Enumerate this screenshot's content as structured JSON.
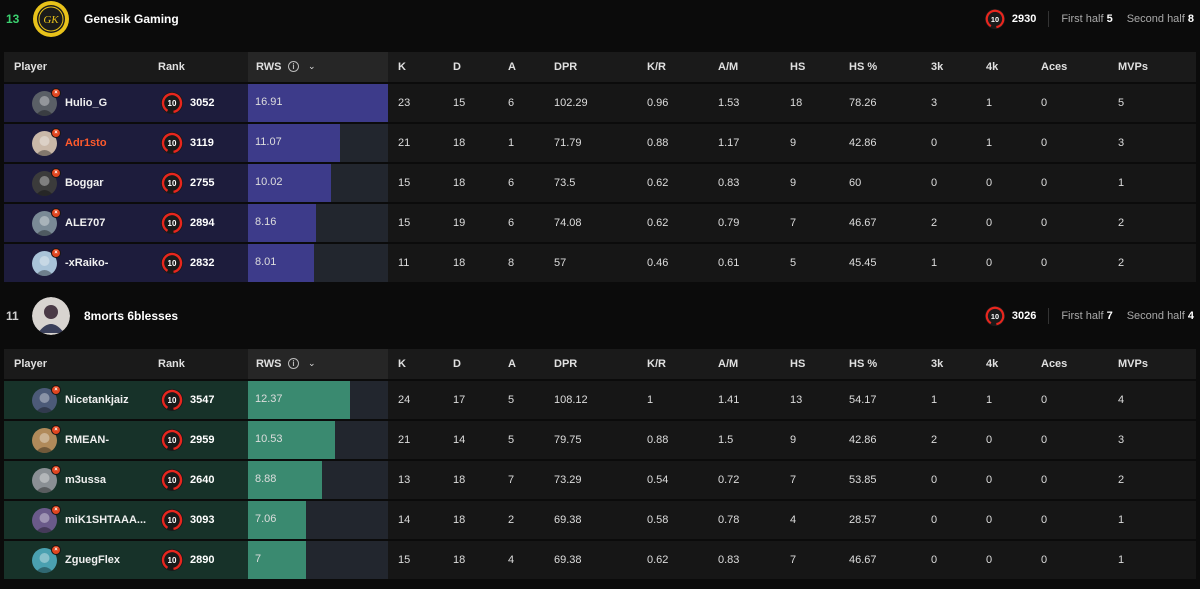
{
  "teams": [
    {
      "score": "13",
      "score_color": "#3bd16f",
      "name": "Genesik Gaming",
      "avg_elo": "2930",
      "first_half_label": "First half",
      "first_half": "5",
      "second_half_label": "Second half",
      "second_half": "8",
      "row_color": "#1d1c3c",
      "bar_color": "#3d3b8a",
      "rws_max": 16.91,
      "players": [
        {
          "nick": "Hulio_G",
          "nick_color": "#f0f0f0",
          "level": "10",
          "elo": "3052",
          "rws": "16.91",
          "k": "23",
          "d": "15",
          "a": "6",
          "dpr": "102.29",
          "kr": "0.96",
          "am": "1.53",
          "hs": "18",
          "hsp": "78.26",
          "k3": "3",
          "k4": "1",
          "aces": "0",
          "mvps": "5"
        },
        {
          "nick": "Adr1sto",
          "nick_color": "#ff5a2c",
          "level": "10",
          "elo": "3119",
          "rws": "11.07",
          "k": "21",
          "d": "18",
          "a": "1",
          "dpr": "71.79",
          "kr": "0.88",
          "am": "1.17",
          "hs": "9",
          "hsp": "42.86",
          "k3": "0",
          "k4": "1",
          "aces": "0",
          "mvps": "3"
        },
        {
          "nick": "Boggar",
          "nick_color": "#f0f0f0",
          "level": "10",
          "elo": "2755",
          "rws": "10.02",
          "k": "15",
          "d": "18",
          "a": "6",
          "dpr": "73.5",
          "kr": "0.62",
          "am": "0.83",
          "hs": "9",
          "hsp": "60",
          "k3": "0",
          "k4": "0",
          "aces": "0",
          "mvps": "1"
        },
        {
          "nick": "ALE707",
          "nick_color": "#f0f0f0",
          "level": "10",
          "elo": "2894",
          "rws": "8.16",
          "k": "15",
          "d": "19",
          "a": "6",
          "dpr": "74.08",
          "kr": "0.62",
          "am": "0.79",
          "hs": "7",
          "hsp": "46.67",
          "k3": "2",
          "k4": "0",
          "aces": "0",
          "mvps": "2"
        },
        {
          "nick": "-xRaiko-",
          "nick_color": "#f0f0f0",
          "level": "10",
          "elo": "2832",
          "rws": "8.01",
          "k": "11",
          "d": "18",
          "a": "8",
          "dpr": "57",
          "kr": "0.46",
          "am": "0.61",
          "hs": "5",
          "hsp": "45.45",
          "k3": "1",
          "k4": "0",
          "aces": "0",
          "mvps": "2"
        }
      ]
    },
    {
      "score": "11",
      "score_color": "#cfcfcf",
      "name": "8morts 6blesses",
      "avg_elo": "3026",
      "first_half_label": "First half",
      "first_half": "7",
      "second_half_label": "Second half",
      "second_half": "4",
      "row_color": "#173229",
      "bar_color": "#3a8a70",
      "rws_max": 16.91,
      "players": [
        {
          "nick": "Nicetankjaiz",
          "nick_color": "#f0f0f0",
          "level": "10",
          "elo": "3547",
          "rws": "12.37",
          "k": "24",
          "d": "17",
          "a": "5",
          "dpr": "108.12",
          "kr": "1",
          "am": "1.41",
          "hs": "13",
          "hsp": "54.17",
          "k3": "1",
          "k4": "1",
          "aces": "0",
          "mvps": "4"
        },
        {
          "nick": "RMEAN-",
          "nick_color": "#f0f0f0",
          "level": "10",
          "elo": "2959",
          "rws": "10.53",
          "k": "21",
          "d": "14",
          "a": "5",
          "dpr": "79.75",
          "kr": "0.88",
          "am": "1.5",
          "hs": "9",
          "hsp": "42.86",
          "k3": "2",
          "k4": "0",
          "aces": "0",
          "mvps": "3"
        },
        {
          "nick": "m3ussa",
          "nick_color": "#f0f0f0",
          "level": "10",
          "elo": "2640",
          "rws": "8.88",
          "k": "13",
          "d": "18",
          "a": "7",
          "dpr": "73.29",
          "kr": "0.54",
          "am": "0.72",
          "hs": "7",
          "hsp": "53.85",
          "k3": "0",
          "k4": "0",
          "aces": "0",
          "mvps": "2"
        },
        {
          "nick": "miK1SHTAAA...",
          "nick_color": "#f0f0f0",
          "level": "10",
          "elo": "3093",
          "rws": "7.06",
          "k": "14",
          "d": "18",
          "a": "2",
          "dpr": "69.38",
          "kr": "0.58",
          "am": "0.78",
          "hs": "4",
          "hsp": "28.57",
          "k3": "0",
          "k4": "0",
          "aces": "0",
          "mvps": "1"
        },
        {
          "nick": "ZguegFlex",
          "nick_color": "#f0f0f0",
          "level": "10",
          "elo": "2890",
          "rws": "7",
          "k": "15",
          "d": "18",
          "a": "4",
          "dpr": "69.38",
          "kr": "0.62",
          "am": "0.83",
          "hs": "7",
          "hsp": "46.67",
          "k3": "0",
          "k4": "0",
          "aces": "0",
          "mvps": "1"
        }
      ]
    }
  ],
  "columns": {
    "player": "Player",
    "rank": "Rank",
    "rws": "RWS",
    "k": "K",
    "d": "D",
    "a": "A",
    "dpr": "DPR",
    "kr": "K/R",
    "am": "A/M",
    "hs": "HS",
    "hsp": "HS %",
    "k3": "3k",
    "k4": "4k",
    "aces": "Aces",
    "mvps": "MVPs"
  },
  "icons": {
    "info": "info-icon",
    "sort": "chevron-down-icon",
    "level": "faceit-level-10-icon",
    "level_color": "#e8261e"
  }
}
